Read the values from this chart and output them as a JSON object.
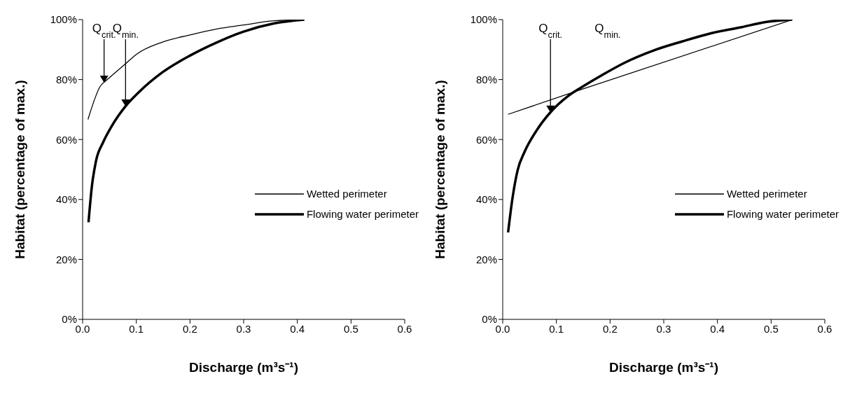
{
  "chart_data": [
    {
      "type": "line",
      "xlabel": "Discharge (m³s⁻¹)",
      "ylabel": "Habitat (percentage of max.)",
      "xlim": [
        0,
        0.6
      ],
      "ylim": [
        0,
        100
      ],
      "xticks": [
        {
          "value": 0,
          "label": "0.0"
        },
        {
          "value": 0.1,
          "label": "0.1"
        },
        {
          "value": 0.2,
          "label": "0.2"
        },
        {
          "value": 0.3,
          "label": "0.3"
        },
        {
          "value": 0.4,
          "label": "0.4"
        },
        {
          "value": 0.5,
          "label": "0.5"
        },
        {
          "value": 0.6,
          "label": "0.6"
        }
      ],
      "yticks": [
        {
          "value": 0,
          "label": "0%"
        },
        {
          "value": 20,
          "label": "20%"
        },
        {
          "value": 40,
          "label": "40%"
        },
        {
          "value": 60,
          "label": "60%"
        },
        {
          "value": 80,
          "label": "80%"
        },
        {
          "value": 100,
          "label": "100%"
        }
      ],
      "legend": "right",
      "marker": "none",
      "series": [
        {
          "name": "Wetted perimeter",
          "color": "#000000",
          "x": [
            0.01,
            0.033,
            0.046,
            0.08,
            0.1,
            0.147,
            0.2,
            0.25,
            0.3,
            0.356,
            0.413
          ],
          "values": [
            66.7,
            77.8,
            80,
            85.3,
            88.4,
            92.4,
            94.9,
            96.9,
            98.2,
            99.6,
            100
          ]
        },
        {
          "name": "Flowing water perimeter",
          "color": "#000000",
          "x": [
            0.011,
            0.017,
            0.025,
            0.038,
            0.054,
            0.08,
            0.106,
            0.147,
            0.2,
            0.25,
            0.3,
            0.356,
            0.413
          ],
          "values": [
            32.4,
            44,
            52.9,
            59,
            64.4,
            71.1,
            76,
            82.2,
            88,
            92.4,
            96,
            98.7,
            100
          ]
        }
      ],
      "annotations": [
        {
          "text": "Q$_{crit.}$",
          "x": 0.04,
          "y": 79
        },
        {
          "text": "Q$_{min.}$",
          "x": 0.08,
          "y": 71
        }
      ]
    },
    {
      "type": "line",
      "xlabel": "Discharge (m³s⁻¹)",
      "ylabel": "Habitat (percentage of max.)",
      "xlim": [
        0,
        0.6
      ],
      "ylim": [
        0,
        100
      ],
      "xticks": [
        {
          "value": 0,
          "label": "0.0"
        },
        {
          "value": 0.1,
          "label": "0.1"
        },
        {
          "value": 0.2,
          "label": "0.2"
        },
        {
          "value": 0.3,
          "label": "0.3"
        },
        {
          "value": 0.4,
          "label": "0.4"
        },
        {
          "value": 0.5,
          "label": "0.5"
        },
        {
          "value": 0.6,
          "label": "0.6"
        }
      ],
      "yticks": [
        {
          "value": 0,
          "label": "0%"
        },
        {
          "value": 20,
          "label": "20%"
        },
        {
          "value": 40,
          "label": "40%"
        },
        {
          "value": 60,
          "label": "60%"
        },
        {
          "value": 80,
          "label": "80%"
        },
        {
          "value": 100,
          "label": "100%"
        }
      ],
      "legend": "right",
      "marker": "none",
      "series": [
        {
          "name": "Wetted perimeter",
          "color": "#000000",
          "x": [
            0.01,
            0.143,
            0.54
          ],
          "values": [
            68.4,
            76.5,
            100
          ]
        },
        {
          "name": "Flowing water perimeter",
          "color": "#000000",
          "x": [
            0.01,
            0.018,
            0.028,
            0.041,
            0.063,
            0.089,
            0.121,
            0.143,
            0.185,
            0.228,
            0.281,
            0.334,
            0.387,
            0.44,
            0.494,
            0.539
          ],
          "values": [
            29,
            40.2,
            49.9,
            56,
            63,
            69.1,
            74.4,
            77,
            81.5,
            85.7,
            89.7,
            92.7,
            95.4,
            97.3,
            99.3,
            100
          ]
        }
      ],
      "annotations": [
        {
          "text": "Q$_{crit.}$",
          "x": 0.089,
          "y": 69
        },
        "Q$_{min.}$"
      ]
    }
  ]
}
